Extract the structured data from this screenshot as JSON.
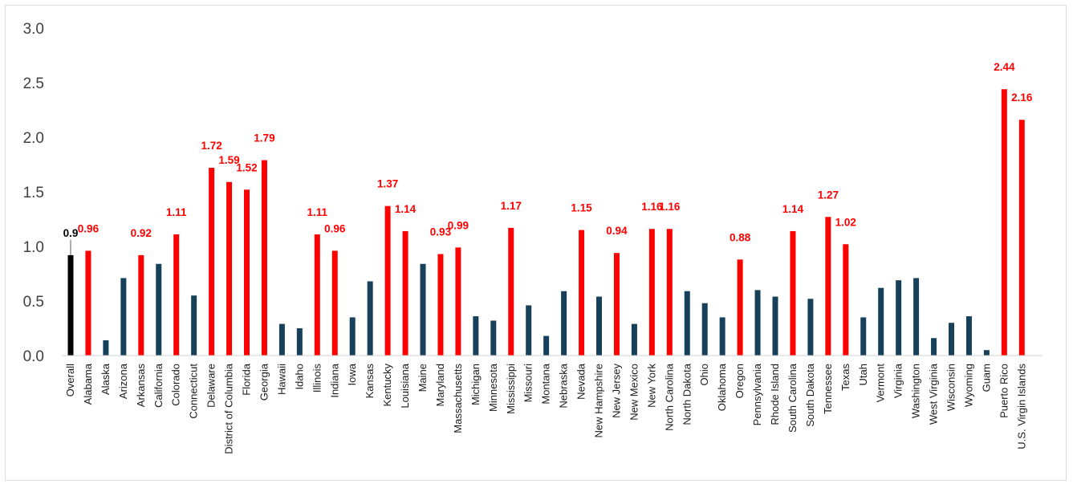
{
  "chart_data": {
    "type": "bar",
    "title": "",
    "xlabel": "",
    "ylabel": "",
    "ylim": [
      0,
      3.0
    ],
    "yticks": [
      "0.0",
      "0.5",
      "1.0",
      "1.5",
      "2.0",
      "2.5",
      "3.0"
    ],
    "grid": false,
    "legend": "none",
    "colors": {
      "overall": "#000000",
      "highlighted": "#ff0000",
      "default": "#17415a",
      "label_overall": "#000000",
      "label_highlighted": "#ff0000"
    },
    "categories": [
      "Overall",
      "Alabama",
      "Alaska",
      "Arizona",
      "Arkansas",
      "California",
      "Colorado",
      "Connecticut",
      "Delaware",
      "District of Columbia",
      "Florida",
      "Georgia",
      "Hawaii",
      "Idaho",
      "Illinois",
      "Indiana",
      "Iowa",
      "Kansas",
      "Kentucky",
      "Louisiana",
      "Maine",
      "Maryland",
      "Massachusetts",
      "Michigan",
      "Minnesota",
      "Mississippi",
      "Missouri",
      "Montana",
      "Nebraska",
      "Nevada",
      "New Hampshire",
      "New Jersey",
      "New Mexico",
      "New York",
      "North Carolina",
      "North Dakota",
      "Ohio",
      "Oklahoma",
      "Oregon",
      "Pennsylvania",
      "Rhode Island",
      "South Carolina",
      "South Dakota",
      "Tennessee",
      "Texas",
      "Utah",
      "Vermont",
      "Virginia",
      "Washington",
      "West Virginia",
      "Wisconsin",
      "Wyoming",
      "Guam",
      "Puerto Rico",
      "U.S. Virgin Islands"
    ],
    "values": [
      0.92,
      0.96,
      0.14,
      0.71,
      0.92,
      0.84,
      1.11,
      0.55,
      1.72,
      1.59,
      1.52,
      1.79,
      0.29,
      0.25,
      1.11,
      0.96,
      0.35,
      0.68,
      1.37,
      1.14,
      0.84,
      0.93,
      0.99,
      0.36,
      0.32,
      1.17,
      0.46,
      0.18,
      0.59,
      1.15,
      0.54,
      0.94,
      0.29,
      1.16,
      1.16,
      0.59,
      0.48,
      0.35,
      0.88,
      0.6,
      0.54,
      1.14,
      0.52,
      1.27,
      1.02,
      0.35,
      0.62,
      0.69,
      0.71,
      0.16,
      0.3,
      0.36,
      0.05,
      2.44,
      2.16
    ],
    "highlighted": [
      false,
      true,
      false,
      false,
      true,
      false,
      true,
      false,
      true,
      true,
      true,
      true,
      false,
      false,
      true,
      true,
      false,
      false,
      true,
      true,
      false,
      true,
      true,
      false,
      false,
      true,
      false,
      false,
      false,
      true,
      false,
      true,
      false,
      true,
      true,
      false,
      false,
      false,
      true,
      false,
      false,
      true,
      false,
      true,
      true,
      false,
      false,
      false,
      false,
      false,
      false,
      false,
      false,
      true,
      true
    ],
    "data_labels": [
      "0.9",
      "0.96",
      "",
      "",
      "0.92",
      "",
      "1.11",
      "",
      "1.72",
      "1.59",
      "1.52",
      "1.79",
      "",
      "",
      "1.11",
      "0.96",
      "",
      "",
      "1.37",
      "1.14",
      "",
      "0.93",
      "0.99",
      "",
      "",
      "1.17",
      "",
      "",
      "",
      "1.15",
      "",
      "0.94",
      "",
      "1.16",
      "1.16",
      "",
      "",
      "",
      "0.88",
      "",
      "",
      "1.14",
      "",
      "1.27",
      "1.02",
      "",
      "",
      "",
      "",
      "",
      "",
      "",
      "",
      "2.44",
      "2.16"
    ]
  }
}
